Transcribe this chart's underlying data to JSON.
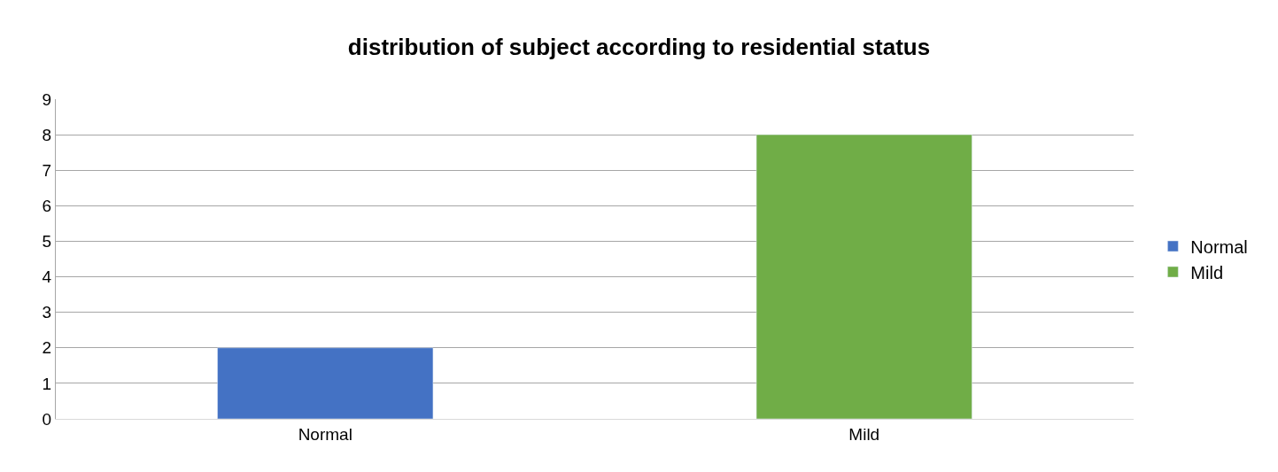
{
  "chart_data": {
    "type": "bar",
    "title": "distribution of subject according to residential status",
    "categories": [
      "Normal",
      "Mild"
    ],
    "series": [
      {
        "name": "Normal",
        "color": "#4472c4",
        "values": [
          2,
          null
        ]
      },
      {
        "name": "Mild",
        "color": "#70ad47",
        "values": [
          null,
          8
        ]
      }
    ],
    "ylim": [
      0,
      9
    ],
    "yticks": [
      0,
      1,
      2,
      3,
      4,
      5,
      6,
      7,
      8,
      9
    ],
    "grid": "y",
    "legend": "right"
  }
}
